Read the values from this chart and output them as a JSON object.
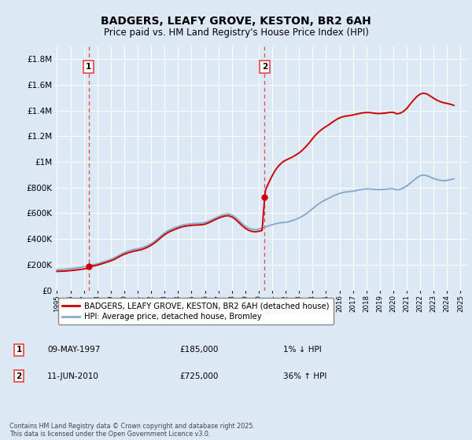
{
  "title": "BADGERS, LEAFY GROVE, KESTON, BR2 6AH",
  "subtitle": "Price paid vs. HM Land Registry's House Price Index (HPI)",
  "title_fontsize": 10,
  "subtitle_fontsize": 8.5,
  "ylim": [
    0,
    1900000
  ],
  "yticks": [
    0,
    200000,
    400000,
    600000,
    800000,
    1000000,
    1200000,
    1400000,
    1600000,
    1800000
  ],
  "ytick_labels": [
    "£0",
    "£200K",
    "£400K",
    "£600K",
    "£800K",
    "£1M",
    "£1.2M",
    "£1.4M",
    "£1.6M",
    "£1.8M"
  ],
  "background_color": "#dde8f5",
  "plot_bg_color": "#dde8f5",
  "grid_color": "#ffffff",
  "sale1_date": 1997.36,
  "sale1_price": 185000,
  "sale2_date": 2010.44,
  "sale2_price": 725000,
  "sale1_label": "1",
  "sale2_label": "2",
  "vline_color": "#ee3333",
  "legend_line1": "BADGERS, LEAFY GROVE, KESTON, BR2 6AH (detached house)",
  "legend_line2": "HPI: Average price, detached house, Bromley",
  "legend_line1_color": "#cc0000",
  "legend_line2_color": "#88aacc",
  "table_row1": [
    "1",
    "09-MAY-1997",
    "£185,000",
    "1% ↓ HPI"
  ],
  "table_row2": [
    "2",
    "11-JUN-2010",
    "£725,000",
    "36% ↑ HPI"
  ],
  "footer": "Contains HM Land Registry data © Crown copyright and database right 2025.\nThis data is licensed under the Open Government Licence v3.0.",
  "hpi_data_x": [
    1995.0,
    1995.25,
    1995.5,
    1995.75,
    1996.0,
    1996.25,
    1996.5,
    1996.75,
    1997.0,
    1997.25,
    1997.5,
    1997.75,
    1998.0,
    1998.25,
    1998.5,
    1998.75,
    1999.0,
    1999.25,
    1999.5,
    1999.75,
    2000.0,
    2000.25,
    2000.5,
    2000.75,
    2001.0,
    2001.25,
    2001.5,
    2001.75,
    2002.0,
    2002.25,
    2002.5,
    2002.75,
    2003.0,
    2003.25,
    2003.5,
    2003.75,
    2004.0,
    2004.25,
    2004.5,
    2004.75,
    2005.0,
    2005.25,
    2005.5,
    2005.75,
    2006.0,
    2006.25,
    2006.5,
    2006.75,
    2007.0,
    2007.25,
    2007.5,
    2007.75,
    2008.0,
    2008.25,
    2008.5,
    2008.75,
    2009.0,
    2009.25,
    2009.5,
    2009.75,
    2010.0,
    2010.25,
    2010.5,
    2010.75,
    2011.0,
    2011.25,
    2011.5,
    2011.75,
    2012.0,
    2012.25,
    2012.5,
    2012.75,
    2013.0,
    2013.25,
    2013.5,
    2013.75,
    2014.0,
    2014.25,
    2014.5,
    2014.75,
    2015.0,
    2015.25,
    2015.5,
    2015.75,
    2016.0,
    2016.25,
    2016.5,
    2016.75,
    2017.0,
    2017.25,
    2017.5,
    2017.75,
    2018.0,
    2018.25,
    2018.5,
    2018.75,
    2019.0,
    2019.25,
    2019.5,
    2019.75,
    2020.0,
    2020.25,
    2020.5,
    2020.75,
    2021.0,
    2021.25,
    2021.5,
    2021.75,
    2022.0,
    2022.25,
    2022.5,
    2022.75,
    2023.0,
    2023.25,
    2023.5,
    2023.75,
    2024.0,
    2024.25,
    2024.5
  ],
  "hpi_data_y": [
    160000,
    162000,
    164000,
    166000,
    169000,
    172000,
    176000,
    180000,
    184000,
    188000,
    194000,
    200000,
    207000,
    215000,
    224000,
    232000,
    241000,
    253000,
    267000,
    281000,
    294000,
    305000,
    313000,
    319000,
    324000,
    330000,
    339000,
    350000,
    364000,
    382000,
    403000,
    426000,
    447000,
    464000,
    477000,
    488000,
    497000,
    506000,
    512000,
    516000,
    519000,
    521000,
    522000,
    524000,
    528000,
    537000,
    549000,
    562000,
    574000,
    585000,
    593000,
    595000,
    587000,
    570000,
    547000,
    521000,
    500000,
    485000,
    476000,
    473000,
    477000,
    484000,
    493000,
    503000,
    511000,
    518000,
    524000,
    528000,
    530000,
    535000,
    543000,
    553000,
    564000,
    578000,
    595000,
    614000,
    636000,
    658000,
    677000,
    693000,
    707000,
    720000,
    733000,
    745000,
    754000,
    761000,
    766000,
    769000,
    772000,
    777000,
    783000,
    787000,
    789000,
    789000,
    787000,
    785000,
    784000,
    786000,
    788000,
    791000,
    790000,
    783000,
    786000,
    797000,
    812000,
    833000,
    855000,
    876000,
    893000,
    898000,
    893000,
    882000,
    870000,
    862000,
    856000,
    853000,
    856000,
    862000,
    868000
  ],
  "house_data_x": [
    1995.0,
    1995.25,
    1995.5,
    1995.75,
    1996.0,
    1996.25,
    1996.5,
    1996.75,
    1997.0,
    1997.25,
    1997.36,
    1997.5,
    1997.75,
    1998.0,
    1998.25,
    1998.5,
    1998.75,
    1999.0,
    1999.25,
    1999.5,
    1999.75,
    2000.0,
    2000.25,
    2000.5,
    2000.75,
    2001.0,
    2001.25,
    2001.5,
    2001.75,
    2002.0,
    2002.25,
    2002.5,
    2002.75,
    2003.0,
    2003.25,
    2003.5,
    2003.75,
    2004.0,
    2004.25,
    2004.5,
    2004.75,
    2005.0,
    2005.25,
    2005.5,
    2005.75,
    2006.0,
    2006.25,
    2006.5,
    2006.75,
    2007.0,
    2007.25,
    2007.5,
    2007.75,
    2008.0,
    2008.25,
    2008.5,
    2008.75,
    2009.0,
    2009.25,
    2009.5,
    2009.75,
    2010.0,
    2010.25,
    2010.44,
    2010.5,
    2010.75,
    2011.0,
    2011.25,
    2011.5,
    2011.75,
    2012.0,
    2012.25,
    2012.5,
    2012.75,
    2013.0,
    2013.25,
    2013.5,
    2013.75,
    2014.0,
    2014.25,
    2014.5,
    2014.75,
    2015.0,
    2015.25,
    2015.5,
    2015.75,
    2016.0,
    2016.25,
    2016.5,
    2016.75,
    2017.0,
    2017.25,
    2017.5,
    2017.75,
    2018.0,
    2018.25,
    2018.5,
    2018.75,
    2019.0,
    2019.25,
    2019.5,
    2019.75,
    2020.0,
    2020.25,
    2020.5,
    2020.75,
    2021.0,
    2021.25,
    2021.5,
    2021.75,
    2022.0,
    2022.25,
    2022.5,
    2022.75,
    2023.0,
    2023.25,
    2023.5,
    2023.75,
    2024.0,
    2024.25,
    2024.5
  ],
  "house_data_y": [
    148000,
    149000,
    150000,
    152000,
    154000,
    157000,
    160000,
    163000,
    167000,
    170000,
    185000,
    187000,
    191000,
    197000,
    204000,
    213000,
    221000,
    230000,
    241000,
    255000,
    269000,
    281000,
    291000,
    299000,
    306000,
    311000,
    317000,
    326000,
    337000,
    351000,
    369000,
    390000,
    413000,
    433000,
    450000,
    463000,
    474000,
    484000,
    493000,
    499000,
    503000,
    506000,
    508000,
    509000,
    511000,
    515000,
    525000,
    537000,
    550000,
    562000,
    572000,
    579000,
    581000,
    572000,
    554000,
    530000,
    505000,
    483000,
    468000,
    459000,
    456000,
    460000,
    467000,
    725000,
    780000,
    840000,
    893000,
    938000,
    972000,
    997000,
    1013000,
    1025000,
    1038000,
    1053000,
    1070000,
    1092000,
    1118000,
    1148000,
    1181000,
    1212000,
    1237000,
    1258000,
    1275000,
    1292000,
    1311000,
    1328000,
    1342000,
    1351000,
    1357000,
    1360000,
    1365000,
    1371000,
    1377000,
    1382000,
    1384000,
    1384000,
    1380000,
    1377000,
    1376000,
    1378000,
    1381000,
    1386000,
    1385000,
    1374000,
    1378000,
    1392000,
    1415000,
    1448000,
    1480000,
    1508000,
    1528000,
    1535000,
    1528000,
    1512000,
    1495000,
    1480000,
    1468000,
    1460000,
    1455000,
    1448000,
    1440000
  ]
}
